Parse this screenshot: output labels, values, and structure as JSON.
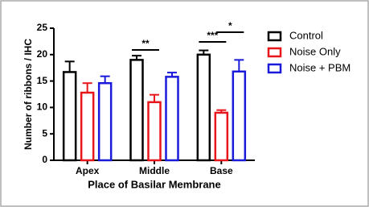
{
  "chart_data": {
    "type": "bar",
    "y_label": "Number of ribbons / IHC",
    "x_label": "Place of Basilar Membrane",
    "categories": [
      "Apex",
      "Middle",
      "Base"
    ],
    "series": [
      {
        "name": "Control",
        "color": "#000000",
        "values": [
          16.7,
          19.0,
          20.0
        ],
        "errors": [
          2.0,
          0.8,
          0.8
        ]
      },
      {
        "name": "Noise Only",
        "color": "#e8161b",
        "values": [
          12.8,
          11.0,
          9.0
        ],
        "errors": [
          1.8,
          1.4,
          0.5
        ]
      },
      {
        "name": "Noise + PBM",
        "color": "#1a1adb",
        "values": [
          14.6,
          15.8,
          16.8
        ],
        "errors": [
          1.3,
          0.8,
          2.2
        ]
      }
    ],
    "annotations": [
      "**",
      "***",
      "*"
    ],
    "ylim": [
      0,
      25
    ],
    "yticks": [
      0,
      5,
      10,
      15,
      20,
      25
    ],
    "legend": "right"
  }
}
